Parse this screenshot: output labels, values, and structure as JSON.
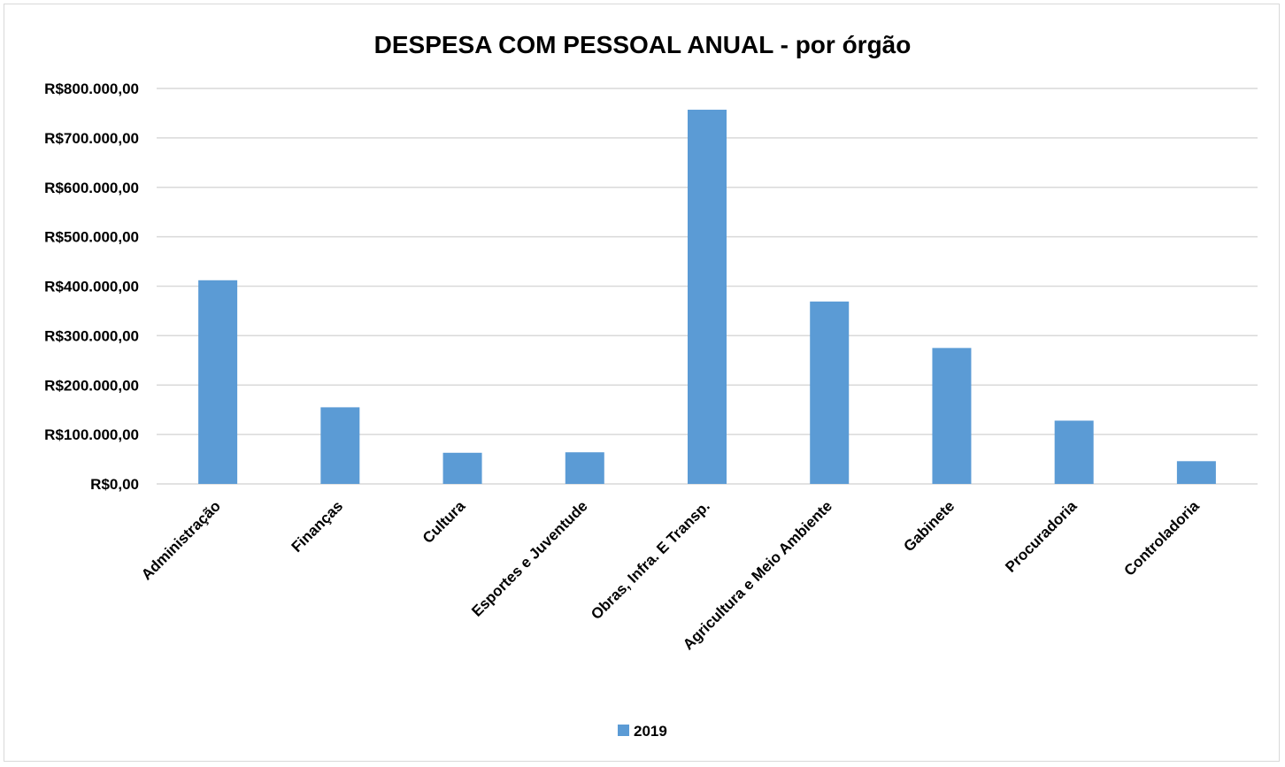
{
  "chart_data": {
    "type": "bar",
    "title": "DESPESA COM PESSOAL ANUAL - por órgão",
    "categories": [
      "Administração",
      "Finanças",
      "Cultura",
      "Esportes e Juventude",
      "Obras, Infra. E Transp.",
      "Agricultura e Meio Ambiente",
      "Gabinete",
      "Procuradoria",
      "Controladoria"
    ],
    "series": [
      {
        "name": "2019",
        "values": [
          412000,
          155000,
          63000,
          64000,
          757000,
          369000,
          275000,
          128000,
          46000
        ]
      }
    ],
    "ylim": [
      0,
      800000
    ],
    "yticks": [
      "R$0,00",
      "R$100.000,00",
      "R$200.000,00",
      "R$300.000,00",
      "R$400.000,00",
      "R$500.000,00",
      "R$600.000,00",
      "R$700.000,00",
      "R$800.000,00"
    ],
    "grid": true,
    "legend": "bottom",
    "colors": {
      "bar": "#5b9bd5",
      "grid": "#d9d9d9",
      "axis": "#bfbfbf"
    }
  }
}
